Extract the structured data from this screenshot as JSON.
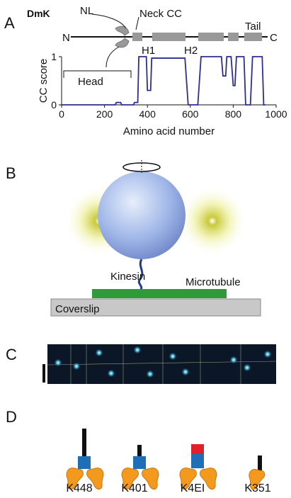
{
  "panels": {
    "A": {
      "label": "A",
      "construct": "DmK",
      "domain_labels": {
        "nl": "NL",
        "neck": "Neck CC",
        "tail": "Tail",
        "n": "N",
        "c": "C",
        "h1": "H1",
        "h2": "H2",
        "head": "Head"
      }
    },
    "B": {
      "label": "B",
      "kinesin": "Kinesin",
      "microtubule": "Microtubule",
      "coverslip": "Coverslip"
    },
    "C": {
      "label": "C"
    },
    "D": {
      "label": "D",
      "constructs": [
        "K448",
        "K401",
        "K4EI",
        "K351"
      ]
    }
  },
  "chart_data": {
    "type": "line",
    "ylabel": "CC score",
    "xlabel": "Amino acid number",
    "x": [
      0,
      250,
      255,
      275,
      280,
      335,
      340,
      355,
      360,
      395,
      400,
      415,
      420,
      575,
      590,
      635,
      650,
      745,
      752,
      765,
      770,
      790,
      800,
      808,
      815,
      850,
      858,
      880,
      890,
      935,
      942,
      950
    ],
    "series": [
      {
        "color": "#2b2f8f",
        "values": [
          0,
          0,
          0.05,
          0.05,
          0,
          0,
          0.05,
          0.05,
          1,
          1,
          0.3,
          0.3,
          0.97,
          0.97,
          0,
          0,
          1,
          1,
          0.6,
          0.6,
          1,
          1,
          0.4,
          0.4,
          1,
          1,
          0,
          0,
          1,
          1,
          0,
          0
        ]
      }
    ],
    "xlim": [
      0,
      1000
    ],
    "xticks": [
      0,
      200,
      400,
      600,
      800,
      1000
    ],
    "ylim": [
      0,
      1
    ],
    "yticks": [
      0,
      1
    ]
  }
}
